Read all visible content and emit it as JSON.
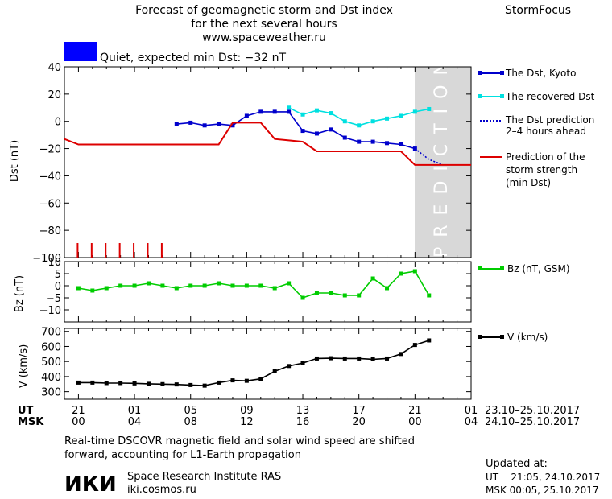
{
  "header": {
    "title_line1": "Forecast of geomagnetic storm and Dst index",
    "title_line2": "for the next several hours",
    "url": "www.spaceweather.ru",
    "brand": "StormFocus",
    "status_text": "Quiet, expected min Dst: −32 nT",
    "status_color": "#0000ff"
  },
  "legend": {
    "dst_kyoto": "The Dst, Kyoto",
    "dst_recovered": "The recovered Dst",
    "dst_pred_1": "The Dst prediction",
    "dst_pred_2": "2–4 hours ahead",
    "storm_1": "Prediction of the",
    "storm_2": "storm strength",
    "storm_3": "(min Dst)",
    "bz": "Bz (nT, GSM)",
    "v": "V (km/s)"
  },
  "prediction_label": "PREDICTION",
  "time_axis": {
    "ut_label": "UT",
    "msk_label": "MSK",
    "ut_ticks": [
      "21",
      "01",
      "05",
      "09",
      "13",
      "17",
      "21",
      "01"
    ],
    "msk_ticks": [
      "00",
      "04",
      "08",
      "12",
      "16",
      "20",
      "00",
      "04"
    ],
    "ut_range": "23.10–25.10.2017",
    "msk_range": "24.10–25.10.2017"
  },
  "footer": {
    "note_line1": "Real-time DSCOVR magnetic field and solar wind speed are shifted",
    "note_line2": "forward, accounting for L1-Earth propagation",
    "institute": "Space Research Institute RAS",
    "institute_url": "iki.cosmos.ru",
    "logo_text": "ИКИ",
    "updated_label": "Updated at:",
    "updated_ut": "UT    21:05, 24.10.2017",
    "updated_msk": "MSK 00:05, 25.10.2017"
  },
  "chart_data": [
    {
      "type": "line",
      "panel": "dst",
      "ylabel": "Dst (nT)",
      "ylim": [
        -100,
        40
      ],
      "yticks": [
        40,
        20,
        0,
        -20,
        -40,
        -60,
        -80,
        -100
      ],
      "xlim_hours": [
        0,
        29
      ],
      "prediction_from_hour": 24.2,
      "series": [
        {
          "name": "The Dst, Kyoto",
          "color": "#0000cc",
          "marker": "square",
          "x": [
            7,
            8,
            9,
            10,
            11,
            12,
            13,
            14,
            15,
            16,
            17,
            18,
            19,
            20,
            21,
            22,
            23,
            24
          ],
          "y": [
            -2,
            -1,
            -3,
            -2,
            -3,
            4,
            7,
            7,
            7,
            -7,
            -9,
            -6,
            -12,
            -15,
            -15,
            -16,
            -17,
            -20
          ]
        },
        {
          "name": "The recovered Dst",
          "color": "#00e0e0",
          "marker": "square",
          "x": [
            15,
            16,
            17,
            18,
            19,
            20,
            21,
            22,
            23,
            24,
            25
          ],
          "y": [
            10,
            5,
            8,
            6,
            0,
            -3,
            0,
            2,
            4,
            7,
            9
          ]
        },
        {
          "name": "The Dst prediction 2–4 hours ahead",
          "color": "#0000cc",
          "dashed": true,
          "x": [
            24,
            25,
            26
          ],
          "y": [
            -20,
            -28,
            -32
          ]
        },
        {
          "name": "Prediction of the storm strength (min Dst)",
          "color": "#dd0000",
          "step": true,
          "x": [
            -1,
            0,
            1,
            2,
            3,
            4,
            5,
            6,
            7,
            8,
            9,
            10,
            11,
            12,
            13,
            14,
            15,
            16,
            17,
            18,
            19,
            20,
            21,
            22,
            23,
            24,
            25,
            26,
            27,
            28
          ],
          "y": [
            -13,
            -17,
            -17,
            -17,
            -17,
            -17,
            -17,
            -17,
            -17,
            -17,
            -17,
            -17,
            -1,
            -1,
            -1,
            -13,
            -14,
            -15,
            -22,
            -22,
            -22,
            -22,
            -22,
            -22,
            -22,
            -32,
            -32,
            -32,
            -32,
            -32
          ]
        }
      ],
      "markers_red_ticks_x": [
        0,
        1,
        2,
        3,
        4,
        5,
        6
      ]
    },
    {
      "type": "line",
      "panel": "bz",
      "ylabel": "Bz (nT)",
      "ylim": [
        -15,
        10
      ],
      "yticks": [
        10,
        5,
        0,
        -5,
        -10
      ],
      "series": [
        {
          "name": "Bz (nT, GSM)",
          "color": "#00cc00",
          "marker": "square",
          "x": [
            0,
            1,
            2,
            3,
            4,
            5,
            6,
            7,
            8,
            9,
            10,
            11,
            12,
            13,
            14,
            15,
            16,
            17,
            18,
            19,
            20,
            21,
            22,
            23,
            24,
            25
          ],
          "y": [
            -1,
            -2,
            -1,
            0,
            0,
            1,
            0,
            -1,
            0,
            0,
            1,
            0,
            0,
            0,
            -1,
            1,
            -5,
            -3,
            -3,
            -4,
            -4,
            3,
            -1,
            5,
            6,
            -4
          ]
        }
      ]
    },
    {
      "type": "line",
      "panel": "v",
      "ylabel": "V (km/s)",
      "ylim": [
        250,
        720
      ],
      "yticks": [
        700,
        600,
        500,
        400,
        300
      ],
      "series": [
        {
          "name": "V (km/s)",
          "color": "#000000",
          "marker": "square",
          "x": [
            0,
            1,
            2,
            3,
            4,
            5,
            6,
            7,
            8,
            9,
            10,
            11,
            12,
            13,
            14,
            15,
            16,
            17,
            18,
            19,
            20,
            21,
            22,
            23,
            24,
            25
          ],
          "y": [
            360,
            360,
            357,
            357,
            355,
            352,
            350,
            348,
            344,
            340,
            360,
            375,
            372,
            385,
            435,
            470,
            490,
            520,
            522,
            520,
            520,
            515,
            520,
            550,
            610,
            640
          ]
        }
      ]
    }
  ]
}
